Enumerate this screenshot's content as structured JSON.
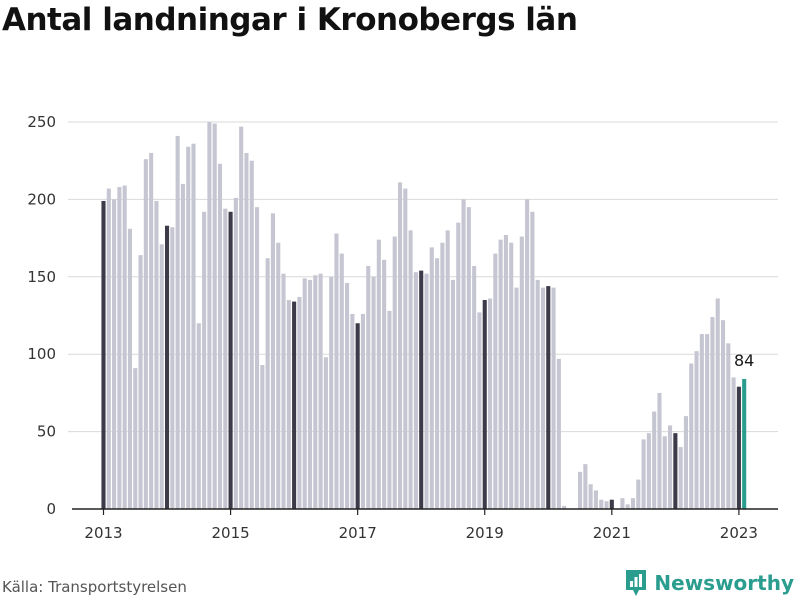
{
  "title": "Antal landningar i Kronobergs län",
  "source": "Källa: Transportstyrelsen",
  "brand": "Newsworthy",
  "colors": {
    "bar": "#c6c6d2",
    "january_bar": "#3d3b4a",
    "highlight_bar": "#2a9d8f",
    "grid": "#d9d9d9",
    "axis": "#222222",
    "brand": "#2a9d8f"
  },
  "chart_data": {
    "type": "bar",
    "start": "2013-01",
    "x_tick_labels": [
      "2013",
      "2015",
      "2017",
      "2019",
      "2021",
      "2023"
    ],
    "y_ticks": [
      0,
      50,
      100,
      150,
      200,
      250
    ],
    "ylim": [
      0,
      260
    ],
    "grid": true,
    "highlight_label": "84",
    "values": [
      199,
      207,
      200,
      208,
      209,
      181,
      91,
      164,
      226,
      230,
      199,
      171,
      183,
      182,
      241,
      210,
      234,
      236,
      120,
      192,
      250,
      249,
      223,
      194,
      192,
      201,
      247,
      230,
      225,
      195,
      93,
      162,
      191,
      172,
      152,
      135,
      134,
      137,
      149,
      148,
      151,
      152,
      98,
      150,
      178,
      165,
      146,
      126,
      120,
      126,
      157,
      150,
      174,
      161,
      128,
      176,
      211,
      207,
      180,
      153,
      154,
      152,
      169,
      162,
      172,
      180,
      148,
      185,
      200,
      195,
      157,
      127,
      135,
      136,
      165,
      174,
      177,
      172,
      143,
      176,
      200,
      192,
      148,
      143,
      144,
      143,
      97,
      2,
      0,
      0,
      24,
      29,
      16,
      12,
      6,
      5,
      6,
      0,
      7,
      3,
      7,
      19,
      45,
      49,
      63,
      75,
      47,
      54,
      49,
      40,
      60,
      94,
      102,
      113,
      113,
      124,
      136,
      122,
      107,
      85,
      79,
      84
    ]
  }
}
